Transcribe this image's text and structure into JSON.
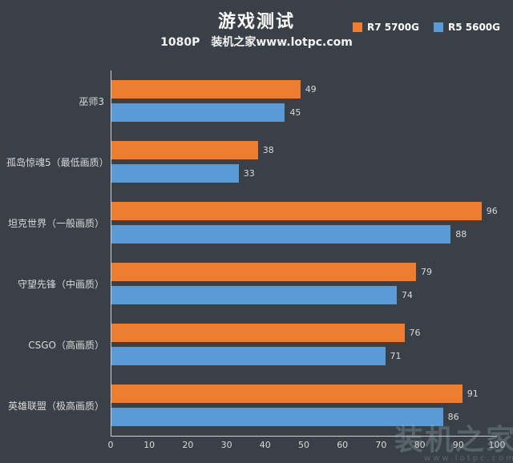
{
  "title": "游戏测试",
  "subtitle": {
    "resolution": "1080P",
    "source": "装机之家www.lotpc.com"
  },
  "legend": [
    {
      "label": "R7 5700G",
      "color": "#ED7D31"
    },
    {
      "label": "R5 5600G",
      "color": "#5B9BD5"
    }
  ],
  "watermark": {
    "text": "装机之家",
    "url": "www.lotpc.com"
  },
  "chart_data": {
    "type": "bar",
    "orientation": "horizontal",
    "title": "游戏测试",
    "subtitle": "1080P 装机之家www.lotpc.com",
    "categories": [
      "巫师3",
      "孤岛惊魂5（最低画质）",
      "坦克世界（一般画质）",
      "守望先锋（中画质）",
      "CSGO（高画质）",
      "英雄联盟（极高画质）"
    ],
    "series": [
      {
        "name": "R7 5700G",
        "color": "#ED7D31",
        "values": [
          49,
          38,
          96,
          79,
          76,
          91
        ]
      },
      {
        "name": "R5 5600G",
        "color": "#5B9BD5",
        "values": [
          45,
          33,
          88,
          74,
          71,
          86
        ]
      }
    ],
    "xlim": [
      0,
      100
    ],
    "xticks": [
      0,
      10,
      20,
      30,
      40,
      50,
      60,
      70,
      80,
      90,
      100
    ],
    "grid": false,
    "legend_position": "top-right",
    "background": "#3a4047"
  }
}
